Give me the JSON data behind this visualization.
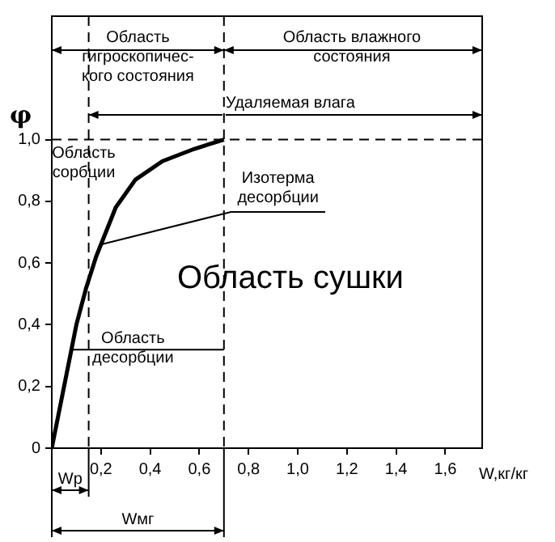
{
  "chart_data": {
    "type": "line",
    "xlabel": "W,кг/кг",
    "ylabel": "φ",
    "x": [
      0,
      0.05,
      0.1,
      0.14,
      0.18,
      0.26,
      0.34,
      0.45,
      0.58,
      0.7
    ],
    "series": [
      {
        "color": "#000000",
        "values": [
          0,
          0.2,
          0.4,
          0.52,
          0.62,
          0.78,
          0.87,
          0.93,
          0.97,
          1.0
        ]
      }
    ],
    "xlim": [
      0,
      1.75
    ],
    "ylim": [
      0,
      1.4
    ],
    "xticks": [
      {
        "value": 0.2,
        "label": "0,2"
      },
      {
        "value": 0.4,
        "label": "0,4"
      },
      {
        "value": 0.6,
        "label": "0,6"
      },
      {
        "value": 0.8,
        "label": "0,8"
      },
      {
        "value": 1.0,
        "label": "1,0"
      },
      {
        "value": 1.2,
        "label": "1,2"
      },
      {
        "value": 1.4,
        "label": "1,4"
      },
      {
        "value": 1.6,
        "label": "1,6"
      }
    ],
    "yticks": [
      0,
      {
        "value": 0.2,
        "label": "0,2"
      },
      {
        "value": 0.4,
        "label": "0,4"
      },
      {
        "value": 0.6,
        "label": "0,6"
      },
      {
        "value": 0.8,
        "label": "0,8"
      },
      {
        "value": 1.0,
        "label": "1,0"
      }
    ],
    "ref_lines": [
      {
        "axis": "y",
        "value": 1.0,
        "line_style": "dashed"
      },
      {
        "axis": "x",
        "value": 0.15,
        "line_style": "dashed"
      },
      {
        "axis": "x",
        "value": 0.7,
        "line_style": "dashed"
      }
    ],
    "annotations": [
      "Область\nгигроскопичес-\nкого состояния",
      "Область влажного\nсостояния",
      {
        "text": "Удаляемая влага",
        "x": 0.15,
        "y": 1.08
      },
      "Область\nсорбции",
      {
        "text": "Изотерма\nдесорбции",
        "x": 0.2,
        "y": 0.66
      },
      "Область сушки",
      "Область\nдесорбции",
      "Wр",
      "Wмг"
    ],
    "marker": "none",
    "line_style": "solid",
    "grid": false,
    "legend": false
  }
}
